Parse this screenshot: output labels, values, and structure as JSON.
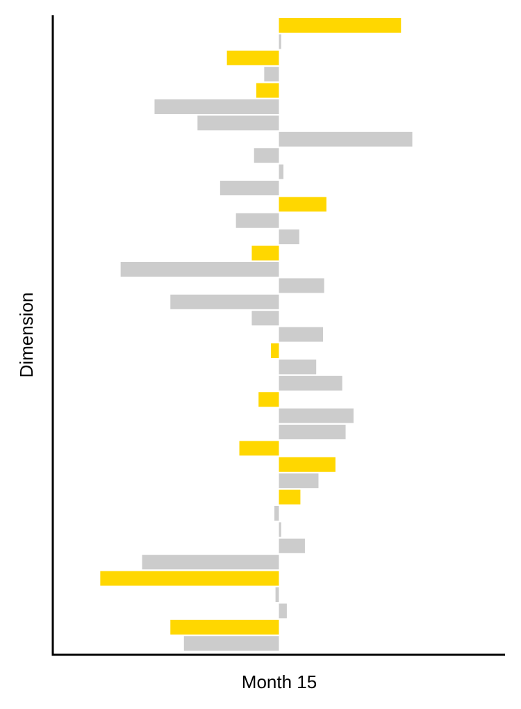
{
  "chart_data": {
    "type": "bar",
    "orientation": "horizontal",
    "title": "",
    "xlabel": "Month 15",
    "ylabel": "Dimension",
    "grid": false,
    "legend": "none",
    "xlim": [
      -100,
      100
    ],
    "colors": {
      "highlight": "#FFD700",
      "default": "#CCCCCC",
      "axis": "#000000"
    },
    "bars": [
      {
        "value": 54,
        "highlight": true
      },
      {
        "value": 1,
        "highlight": false
      },
      {
        "value": -23,
        "highlight": true
      },
      {
        "value": -6.5,
        "highlight": false
      },
      {
        "value": -10,
        "highlight": true
      },
      {
        "value": -55,
        "highlight": false
      },
      {
        "value": -36,
        "highlight": false
      },
      {
        "value": 59,
        "highlight": false
      },
      {
        "value": -11,
        "highlight": false
      },
      {
        "value": 2,
        "highlight": false
      },
      {
        "value": -26,
        "highlight": false
      },
      {
        "value": 21,
        "highlight": true
      },
      {
        "value": -19,
        "highlight": false
      },
      {
        "value": 9,
        "highlight": false
      },
      {
        "value": -12,
        "highlight": true
      },
      {
        "value": -70,
        "highlight": false
      },
      {
        "value": 20,
        "highlight": false
      },
      {
        "value": -48,
        "highlight": false
      },
      {
        "value": -12,
        "highlight": false
      },
      {
        "value": 19.5,
        "highlight": false
      },
      {
        "value": -3.5,
        "highlight": true
      },
      {
        "value": 16.5,
        "highlight": false
      },
      {
        "value": 28,
        "highlight": false
      },
      {
        "value": -9,
        "highlight": true
      },
      {
        "value": 33,
        "highlight": false
      },
      {
        "value": 29.5,
        "highlight": false
      },
      {
        "value": -17.5,
        "highlight": true
      },
      {
        "value": 25,
        "highlight": true
      },
      {
        "value": 17.5,
        "highlight": false
      },
      {
        "value": 9.5,
        "highlight": true
      },
      {
        "value": -2,
        "highlight": false
      },
      {
        "value": 1,
        "highlight": false
      },
      {
        "value": 11.5,
        "highlight": false
      },
      {
        "value": -60.5,
        "highlight": false
      },
      {
        "value": -79,
        "highlight": true
      },
      {
        "value": -1.5,
        "highlight": false
      },
      {
        "value": 3.5,
        "highlight": false
      },
      {
        "value": -48,
        "highlight": true
      },
      {
        "value": -42,
        "highlight": false
      }
    ]
  }
}
